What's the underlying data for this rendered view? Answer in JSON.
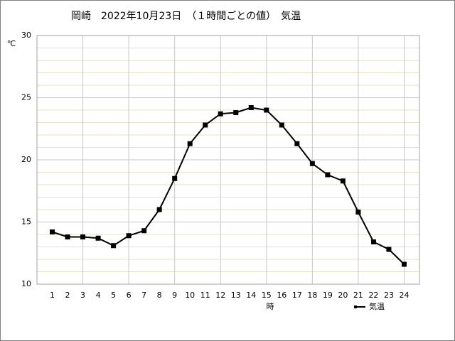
{
  "chart_data": {
    "type": "line",
    "title": "岡崎　2022年10月23日　（１時間ごとの値）　気温",
    "y_label": "℃",
    "x_label": "時",
    "x": [
      1,
      2,
      3,
      4,
      5,
      6,
      7,
      8,
      9,
      10,
      11,
      12,
      13,
      14,
      15,
      16,
      17,
      18,
      19,
      20,
      21,
      22,
      23,
      24
    ],
    "series": [
      {
        "name": "気温",
        "color": "#000000",
        "values": [
          14.2,
          13.8,
          13.8,
          13.7,
          13.1,
          13.9,
          14.3,
          16.0,
          18.5,
          21.3,
          22.8,
          23.7,
          23.8,
          24.2,
          24.0,
          22.8,
          21.3,
          19.7,
          18.8,
          18.3,
          15.8,
          13.4,
          12.8,
          11.6
        ]
      }
    ],
    "xlim": [
      0,
      25
    ],
    "xticks": [
      1,
      2,
      3,
      4,
      5,
      6,
      7,
      8,
      9,
      10,
      11,
      12,
      13,
      14,
      15,
      16,
      17,
      18,
      19,
      20,
      21,
      22,
      23,
      24
    ],
    "x_grid": [
      3,
      6,
      9,
      12,
      15,
      18,
      21,
      24
    ],
    "ylim": [
      10,
      30
    ],
    "yticks": [
      10,
      15,
      20,
      25,
      30
    ],
    "y_minor_ticks": [
      11,
      12,
      13,
      14,
      16,
      17,
      18,
      19,
      21,
      22,
      23,
      24,
      26,
      27,
      28,
      29
    ],
    "grid": true,
    "legend": "bottom-right"
  }
}
